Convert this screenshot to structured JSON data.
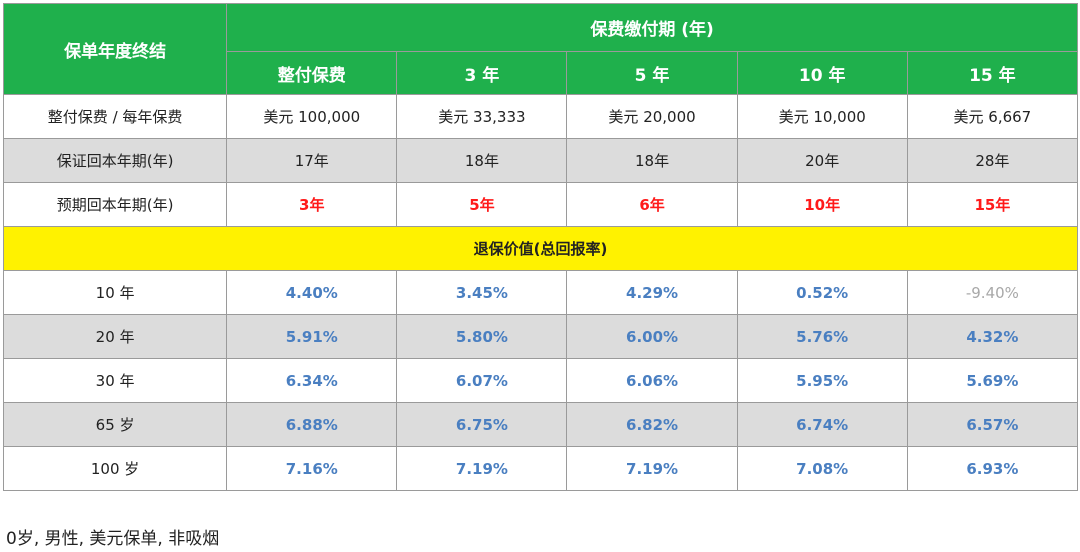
{
  "header": {
    "row_label": "保单年度终结",
    "group_label": "保费缴付期 (年)",
    "periods": [
      "整付保费",
      "3 年",
      "5 年",
      "10 年",
      "15 年"
    ]
  },
  "info_rows": [
    {
      "label": "整付保费 / 每年保费",
      "values": [
        "美元 100,000",
        "美元 33,333",
        "美元 20,000",
        "美元 10,000",
        "美元 6,667"
      ]
    },
    {
      "label": "保证回本年期(年)",
      "values": [
        "17年",
        "18年",
        "18年",
        "20年",
        "28年"
      ]
    },
    {
      "label": "预期回本年期(年)",
      "values": [
        "3年",
        "5年",
        "6年",
        "10年",
        "15年"
      ]
    }
  ],
  "section_title": "退保价值(总回报率)",
  "return_rows": [
    {
      "label": "10 年",
      "values": [
        "4.40%",
        "3.45%",
        "4.29%",
        "0.52%",
        "-9.40%"
      ]
    },
    {
      "label": "20 年",
      "values": [
        "5.91%",
        "5.80%",
        "6.00%",
        "5.76%",
        "4.32%"
      ]
    },
    {
      "label": "30 年",
      "values": [
        "6.34%",
        "6.07%",
        "6.06%",
        "5.95%",
        "5.69%"
      ]
    },
    {
      "label": "65 岁",
      "values": [
        "6.88%",
        "6.75%",
        "6.82%",
        "6.74%",
        "6.57%"
      ]
    },
    {
      "label": "100 岁",
      "values": [
        "7.16%",
        "7.19%",
        "7.19%",
        "7.08%",
        "6.93%"
      ]
    }
  ],
  "footnote": "0岁, 男性, 美元保单, 非吸烟",
  "colors": {
    "header_green": "#1fb04c",
    "section_yellow": "#fff200",
    "value_blue": "#4a7fc1",
    "highlight_red": "#ff1a1a",
    "negative_gray": "#a8a8a8",
    "row_gray": "#dcdcdc"
  }
}
